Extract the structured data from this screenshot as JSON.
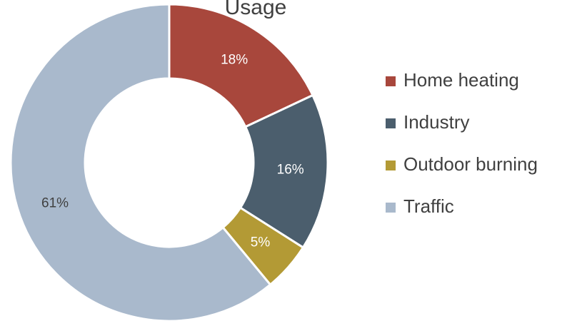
{
  "chart_data": {
    "type": "donut",
    "title": "Usage",
    "categories": [
      "Home heating",
      "Industry",
      "Outdoor burning",
      "Traffic"
    ],
    "values": [
      18,
      16,
      5,
      61
    ],
    "value_labels": [
      "18%",
      "16%",
      "5%",
      "61%"
    ],
    "colors": [
      "#a8473c",
      "#4b5e6d",
      "#b39a35",
      "#a9b9cc"
    ],
    "legend": "right"
  }
}
